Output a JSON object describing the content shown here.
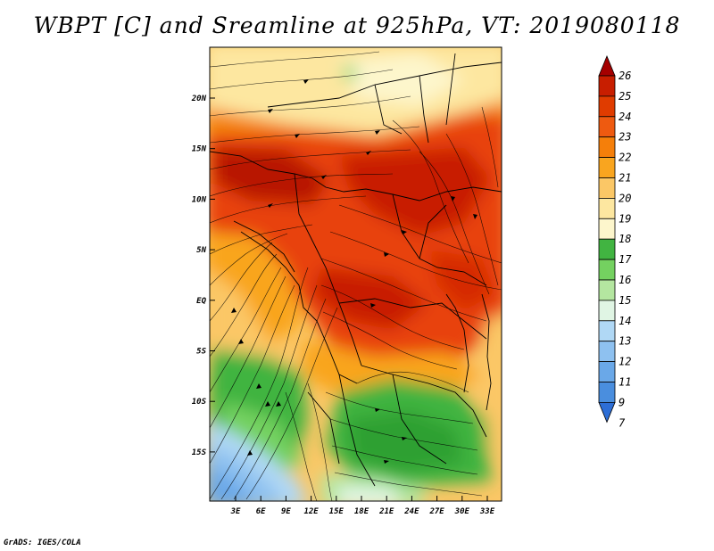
{
  "title": "WBPT [C] and Sreamline at 925hPa, VT: 2019080118",
  "credit": "GrADS: IGES/COLA",
  "map": {
    "latitude_labels": [
      "20N",
      "15N",
      "10N",
      "5N",
      "EQ",
      "5S",
      "10S",
      "15S"
    ],
    "longitude_labels": [
      "3E",
      "6E",
      "9E",
      "12E",
      "15E",
      "18E",
      "21E",
      "24E",
      "27E",
      "30E",
      "33E"
    ]
  },
  "colorbar": {
    "levels": [
      "26",
      "25",
      "24",
      "23",
      "22",
      "21",
      "20",
      "19",
      "18",
      "17",
      "16",
      "15",
      "14",
      "13",
      "12",
      "11",
      "9",
      "7"
    ],
    "colors": [
      "#a50000",
      "#c81e00",
      "#e03c00",
      "#ee5a10",
      "#f57f0a",
      "#f9a51f",
      "#fbc766",
      "#fde7a0",
      "#fdf6cc",
      "#41b441",
      "#74d160",
      "#b4e6a0",
      "#e0f5e4",
      "#b0d8f5",
      "#8ec1f0",
      "#6aa8e8",
      "#4a8ede",
      "#2d6ed6"
    ]
  }
}
